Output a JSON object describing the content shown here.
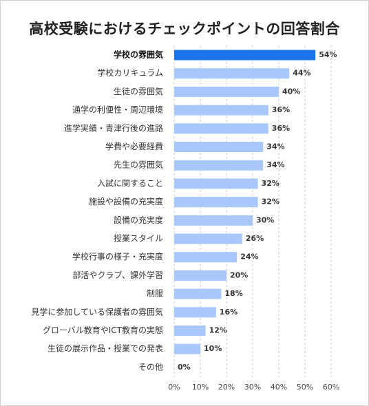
{
  "chart_data": {
    "type": "bar",
    "orientation": "horizontal",
    "title": "高校受験におけるチェックポイントの回答割合",
    "categories": [
      "学校の雰囲気",
      "学校カリキュラム",
      "生徒の雰囲気",
      "通学の利便性・周辺環境",
      "進学実績・青津行後の進路",
      "学費や必要経費",
      "先生の雰囲気",
      "入試に関すること",
      "施設や設備の充実度",
      "設備の充実度",
      "授業スタイル",
      "学校行事の様子・充実度",
      "部活やクラブ、課外学習",
      "制服",
      "見学に参加している保護者の雰囲気",
      "グローバル教育やICT教育の実態",
      "生徒の展示作品・授業での発表",
      "その他"
    ],
    "values": [
      54,
      44,
      40,
      36,
      36,
      34,
      34,
      32,
      32,
      30,
      26,
      24,
      20,
      18,
      16,
      12,
      10,
      0
    ],
    "value_labels": [
      "54%",
      "44%",
      "40%",
      "36%",
      "36%",
      "34%",
      "34%",
      "32%",
      "32%",
      "30%",
      "26%",
      "24%",
      "20%",
      "18%",
      "16%",
      "12%",
      "10%",
      "0%"
    ],
    "highlight_index": 0,
    "xlim": [
      0,
      60
    ],
    "x_ticks": [
      0,
      10,
      20,
      30,
      40,
      50,
      60
    ],
    "x_tick_labels": [
      "0%",
      "10%",
      "20%",
      "30%",
      "40%",
      "50%",
      "60%"
    ],
    "grid": "vertical-dashed",
    "colors": {
      "highlight": "#1a73e8",
      "bar": "#a8c7fa",
      "grid": "#c8c8c8"
    }
  }
}
